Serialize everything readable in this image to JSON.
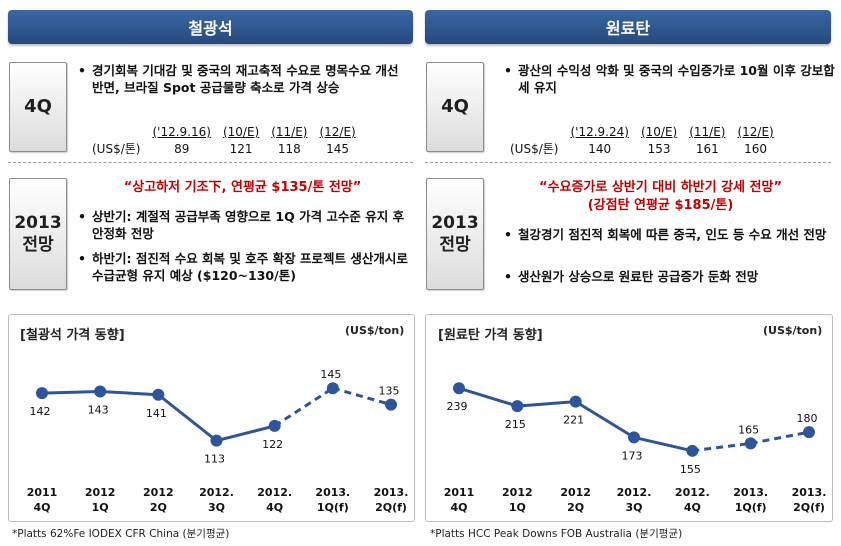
{
  "left": {
    "header": "철광석",
    "q4": {
      "label": "4Q",
      "bullet": "경기회복 기대감 및 중국의 재고축적 수요로 명목수요 개선 반면, 브라질 Spot 공급물량 축소로 가격 상승",
      "table": {
        "row_label": "(US$/톤)",
        "headers": [
          "('12.9.16)",
          "(10/E)",
          "(11/E)",
          "(12/E)"
        ],
        "values": [
          "89",
          "121",
          "118",
          "145"
        ]
      }
    },
    "outlook": {
      "label_line1": "2013",
      "label_line2": "전망",
      "headline": "“상고하저 기조下, 연평균 $135/톤 전망”",
      "bullets": [
        "상반기: 계절적 공급부족 영향으로 1Q 가격 고수준 유지 후 안정화 전망",
        "하반기: 점진적 수요 회복 및 호주 확장 프로젝트 생산개시로 수급균형 유지 예상 ($120~130/톤)"
      ]
    },
    "chart_title": "[철광석 가격 동향]",
    "unit": "(US$/ton)",
    "note": "*Platts 62%Fe IODEX CFR China (분기평균)"
  },
  "right": {
    "header": "원료탄",
    "q4": {
      "label": "4Q",
      "bullet": "광산의 수익성 악화 및 중국의 수입증가로 10월 이후 강보합세 유지",
      "table": {
        "row_label": "(US$/톤)",
        "headers": [
          "('12.9.24)",
          "(10/E)",
          "(11/E)",
          "(12/E)"
        ],
        "values": [
          "140",
          "153",
          "161",
          "160"
        ]
      }
    },
    "outlook": {
      "label_line1": "2013",
      "label_line2": "전망",
      "headline_line1": "“수요증가로 상반기 대비 하반기 강세 전망”",
      "headline_line2": "(강점탄 연평균 $185/톤)",
      "bullets": [
        "철강경기 점진적 회복에 따른 중국, 인도 등 수요 개선 전망",
        "생산원가 상승으로 원료탄 공급증가 둔화 전망"
      ]
    },
    "chart_title": "[원료탄 가격 동향]",
    "unit": "(US$/ton)",
    "note": "*Platts HCC Peak Downs FOB Australia (분기평균)"
  },
  "chart_data": [
    {
      "type": "line",
      "title": "[철광석 가격 동향]",
      "ylabel": "(US$/ton)",
      "categories": [
        "2011\n4Q",
        "2012\n1Q",
        "2012\n2Q",
        "2012.\n3Q",
        "2012.\n4Q",
        "2013.\n1Q(f)",
        "2013.\n2Q(f)"
      ],
      "values": [
        142,
        143,
        141,
        113,
        122,
        145,
        135
      ],
      "forecast_from_index": 4,
      "ylim": [
        100,
        150
      ],
      "color": "#2e5597"
    },
    {
      "type": "line",
      "title": "[원료탄 가격 동향]",
      "ylabel": "(US$/ton)",
      "categories": [
        "2011\n4Q",
        "2012\n1Q",
        "2012\n2Q",
        "2012.\n3Q",
        "2012.\n4Q",
        "2013.\n1Q(f)",
        "2013.\n2Q(f)"
      ],
      "values": [
        239,
        215,
        221,
        173,
        155,
        165,
        180
      ],
      "forecast_from_index": 4,
      "ylim": [
        140,
        250
      ],
      "color": "#2e5597"
    }
  ]
}
